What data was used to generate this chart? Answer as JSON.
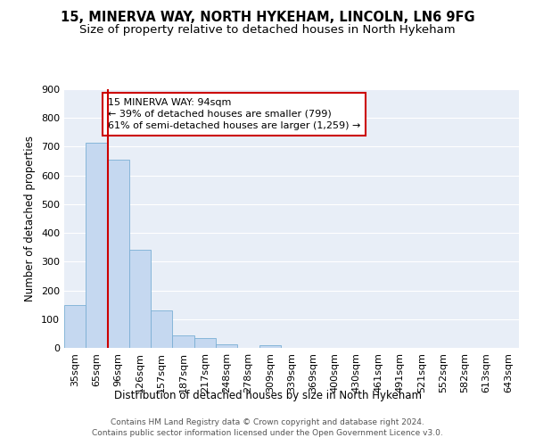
{
  "title": "15, MINERVA WAY, NORTH HYKEHAM, LINCOLN, LN6 9FG",
  "subtitle": "Size of property relative to detached houses in North Hykeham",
  "xlabel": "Distribution of detached houses by size in North Hykeham",
  "ylabel": "Number of detached properties",
  "categories": [
    "35sqm",
    "65sqm",
    "96sqm",
    "126sqm",
    "157sqm",
    "187sqm",
    "217sqm",
    "248sqm",
    "278sqm",
    "309sqm",
    "339sqm",
    "369sqm",
    "400sqm",
    "430sqm",
    "461sqm",
    "491sqm",
    "521sqm",
    "552sqm",
    "582sqm",
    "613sqm",
    "643sqm"
  ],
  "values": [
    150,
    715,
    655,
    340,
    130,
    45,
    33,
    12,
    0,
    10,
    0,
    0,
    0,
    0,
    0,
    0,
    0,
    0,
    0,
    0,
    0
  ],
  "bar_color": "#c5d8f0",
  "bar_edge_color": "#7bafd4",
  "red_line_index": 2,
  "red_line_color": "#cc0000",
  "annotation_text": "15 MINERVA WAY: 94sqm\n← 39% of detached houses are smaller (799)\n61% of semi-detached houses are larger (1,259) →",
  "annotation_box_facecolor": "#ffffff",
  "annotation_box_edgecolor": "#cc0000",
  "ylim": [
    0,
    900
  ],
  "yticks": [
    0,
    100,
    200,
    300,
    400,
    500,
    600,
    700,
    800,
    900
  ],
  "background_color": "#e8eef7",
  "grid_color": "#ffffff",
  "footer": "Contains HM Land Registry data © Crown copyright and database right 2024.\nContains public sector information licensed under the Open Government Licence v3.0.",
  "title_fontsize": 10.5,
  "subtitle_fontsize": 9.5,
  "xlabel_fontsize": 8.5,
  "ylabel_fontsize": 8.5,
  "tick_fontsize": 8,
  "footer_fontsize": 6.5,
  "annot_fontsize": 8
}
